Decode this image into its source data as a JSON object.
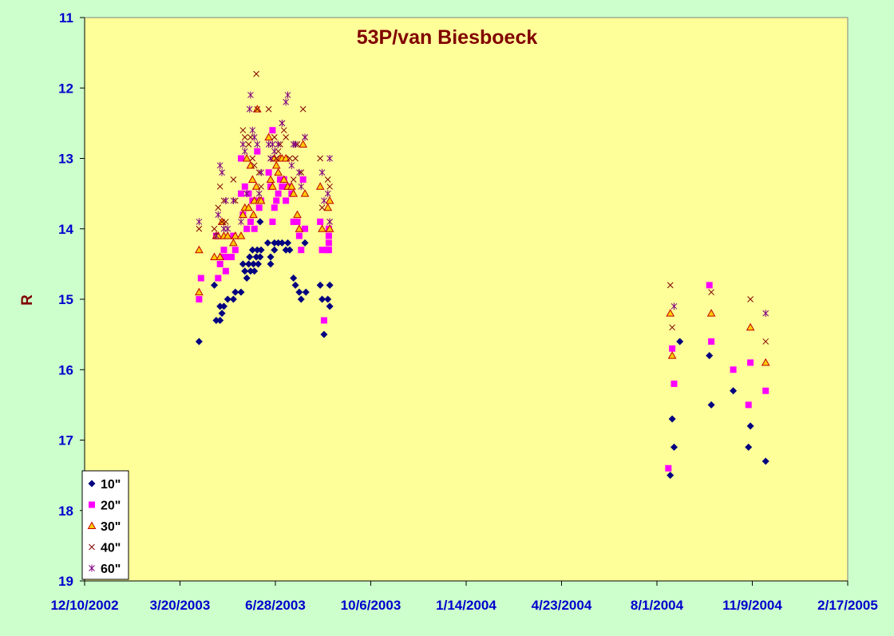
{
  "chart_data": {
    "type": "scatter",
    "title": "53P/van Biesboeck",
    "xlabel": "",
    "ylabel": "R",
    "y_inverted": true,
    "ylim": [
      11,
      19
    ],
    "y_ticks": [
      "11",
      "12",
      "13",
      "14",
      "15",
      "16",
      "17",
      "18",
      "19"
    ],
    "x_ticks": [
      "12/10/2002",
      "3/20/2003",
      "6/28/2003",
      "10/6/2003",
      "1/14/2004",
      "4/23/2004",
      "8/1/2004",
      "11/9/2004",
      "2/17/2005"
    ],
    "xlim": [
      "2002-12-10",
      "2005-02-17"
    ],
    "grid": false,
    "legend_position": "bottom-left",
    "plot_background": "#ffff99",
    "page_background": "#ccffcc",
    "series": [
      {
        "name": "10\"",
        "marker": "diamond",
        "color": "#000080",
        "points": [
          [
            "2003-04-09",
            15.6
          ],
          [
            "2003-04-25",
            14.8
          ],
          [
            "2003-04-27",
            15.3
          ],
          [
            "2003-05-01",
            15.3
          ],
          [
            "2003-05-01",
            15.1
          ],
          [
            "2003-05-03",
            15.2
          ],
          [
            "2003-05-05",
            15.1
          ],
          [
            "2003-05-09",
            15.0
          ],
          [
            "2003-05-15",
            15.0
          ],
          [
            "2003-05-17",
            14.9
          ],
          [
            "2003-05-23",
            14.9
          ],
          [
            "2003-05-25",
            14.5
          ],
          [
            "2003-05-27",
            14.6
          ],
          [
            "2003-05-29",
            14.7
          ],
          [
            "2003-05-31",
            14.5
          ],
          [
            "2003-06-01",
            14.4
          ],
          [
            "2003-06-02",
            14.6
          ],
          [
            "2003-06-04",
            14.3
          ],
          [
            "2003-06-05",
            14.5
          ],
          [
            "2003-06-06",
            14.6
          ],
          [
            "2003-06-08",
            14.4
          ],
          [
            "2003-06-09",
            14.3
          ],
          [
            "2003-06-10",
            14.5
          ],
          [
            "2003-06-12",
            14.4
          ],
          [
            "2003-06-13",
            14.3
          ],
          [
            "2003-06-12",
            13.9
          ],
          [
            "2003-06-20",
            14.2
          ],
          [
            "2003-06-23",
            14.5
          ],
          [
            "2003-06-23",
            14.4
          ],
          [
            "2003-06-27",
            14.3
          ],
          [
            "2003-06-27",
            14.2
          ],
          [
            "2003-07-01",
            14.2
          ],
          [
            "2003-07-05",
            14.2
          ],
          [
            "2003-07-09",
            14.3
          ],
          [
            "2003-07-11",
            14.2
          ],
          [
            "2003-07-13",
            14.3
          ],
          [
            "2003-07-17",
            14.7
          ],
          [
            "2003-07-19",
            14.8
          ],
          [
            "2003-07-23",
            14.9
          ],
          [
            "2003-07-25",
            15.0
          ],
          [
            "2003-07-29",
            14.2
          ],
          [
            "2003-07-30",
            14.9
          ],
          [
            "2003-08-14",
            14.8
          ],
          [
            "2003-08-16",
            15.0
          ],
          [
            "2003-08-18",
            15.5
          ],
          [
            "2003-08-22",
            15.0
          ],
          [
            "2003-08-24",
            15.1
          ],
          [
            "2003-08-24",
            14.8
          ],
          [
            "2004-08-15",
            17.5
          ],
          [
            "2004-08-17",
            16.7
          ],
          [
            "2004-08-19",
            17.1
          ],
          [
            "2004-08-25",
            15.6
          ],
          [
            "2004-09-25",
            15.8
          ],
          [
            "2004-09-27",
            16.5
          ],
          [
            "2004-10-20",
            16.3
          ],
          [
            "2004-11-05",
            17.1
          ],
          [
            "2004-11-07",
            16.8
          ],
          [
            "2004-11-23",
            17.3
          ]
        ]
      },
      {
        "name": "20\"",
        "marker": "square",
        "color": "#ff00ff",
        "points": [
          [
            "2003-04-09",
            15.0
          ],
          [
            "2003-04-11",
            14.7
          ],
          [
            "2003-04-27",
            14.1
          ],
          [
            "2003-04-29",
            14.7
          ],
          [
            "2003-05-01",
            14.5
          ],
          [
            "2003-05-03",
            14.4
          ],
          [
            "2003-05-05",
            14.3
          ],
          [
            "2003-05-07",
            14.6
          ],
          [
            "2003-05-09",
            14.4
          ],
          [
            "2003-05-13",
            14.4
          ],
          [
            "2003-05-15",
            14.1
          ],
          [
            "2003-05-17",
            14.3
          ],
          [
            "2003-05-23",
            13.5
          ],
          [
            "2003-05-25",
            13.8
          ],
          [
            "2003-05-27",
            13.4
          ],
          [
            "2003-05-29",
            14.0
          ],
          [
            "2003-05-31",
            13.5
          ],
          [
            "2003-06-02",
            13.9
          ],
          [
            "2003-06-04",
            13.6
          ],
          [
            "2003-06-06",
            14.0
          ],
          [
            "2003-06-08",
            13.6
          ],
          [
            "2003-06-09",
            12.9
          ],
          [
            "2003-06-11",
            13.7
          ],
          [
            "2003-06-13",
            13.6
          ],
          [
            "2003-05-23",
            13.0
          ],
          [
            "2003-06-21",
            13.2
          ],
          [
            "2003-06-23",
            13.4
          ],
          [
            "2003-06-25",
            12.6
          ],
          [
            "2003-06-25",
            13.9
          ],
          [
            "2003-06-27",
            13.7
          ],
          [
            "2003-06-29",
            13.6
          ],
          [
            "2003-07-01",
            13.5
          ],
          [
            "2003-07-03",
            13.3
          ],
          [
            "2003-07-05",
            13.4
          ],
          [
            "2003-07-07",
            13.3
          ],
          [
            "2003-07-09",
            13.6
          ],
          [
            "2003-07-11",
            13.4
          ],
          [
            "2003-07-15",
            13.5
          ],
          [
            "2003-07-17",
            13.9
          ],
          [
            "2003-07-21",
            13.9
          ],
          [
            "2003-07-23",
            14.1
          ],
          [
            "2003-07-25",
            14.3
          ],
          [
            "2003-07-27",
            13.3
          ],
          [
            "2003-07-29",
            14.0
          ],
          [
            "2003-08-14",
            13.9
          ],
          [
            "2003-08-16",
            14.3
          ],
          [
            "2003-08-18",
            15.3
          ],
          [
            "2003-08-21",
            14.3
          ],
          [
            "2003-08-23",
            14.2
          ],
          [
            "2003-08-23",
            14.1
          ],
          [
            "2003-08-23",
            14.0
          ],
          [
            "2003-08-23",
            14.3
          ],
          [
            "2004-08-13",
            17.4
          ],
          [
            "2004-08-17",
            15.7
          ],
          [
            "2004-08-19",
            16.2
          ],
          [
            "2004-09-25",
            14.8
          ],
          [
            "2004-09-27",
            15.6
          ],
          [
            "2004-10-20",
            16.0
          ],
          [
            "2004-11-05",
            16.5
          ],
          [
            "2004-11-07",
            15.9
          ],
          [
            "2004-11-23",
            16.3
          ]
        ]
      },
      {
        "name": "30\"",
        "marker": "triangle",
        "color": "#ffcc00",
        "stroke": "#c00000",
        "points": [
          [
            "2003-04-09",
            14.3
          ],
          [
            "2003-04-09",
            14.9
          ],
          [
            "2003-04-25",
            14.4
          ],
          [
            "2003-04-27",
            14.1
          ],
          [
            "2003-04-29",
            14.1
          ],
          [
            "2003-05-01",
            14.4
          ],
          [
            "2003-05-03",
            13.9
          ],
          [
            "2003-05-05",
            14.1
          ],
          [
            "2003-05-09",
            14.1
          ],
          [
            "2003-05-15",
            14.2
          ],
          [
            "2003-05-17",
            14.1
          ],
          [
            "2003-05-23",
            14.1
          ],
          [
            "2003-05-25",
            13.8
          ],
          [
            "2003-05-27",
            13.7
          ],
          [
            "2003-05-29",
            13.0
          ],
          [
            "2003-05-31",
            13.7
          ],
          [
            "2003-06-02",
            13.1
          ],
          [
            "2003-06-04",
            13.3
          ],
          [
            "2003-06-05",
            13.8
          ],
          [
            "2003-06-06",
            13.6
          ],
          [
            "2003-06-08",
            13.4
          ],
          [
            "2003-06-09",
            12.3
          ],
          [
            "2003-06-11",
            13.6
          ],
          [
            "2003-06-13",
            13.6
          ],
          [
            "2003-06-21",
            12.7
          ],
          [
            "2003-06-23",
            13.3
          ],
          [
            "2003-06-25",
            13.4
          ],
          [
            "2003-06-27",
            13.0
          ],
          [
            "2003-06-29",
            13.1
          ],
          [
            "2003-07-01",
            13.2
          ],
          [
            "2003-07-03",
            13.0
          ],
          [
            "2003-07-05",
            13.0
          ],
          [
            "2003-07-07",
            13.3
          ],
          [
            "2003-07-09",
            13.0
          ],
          [
            "2003-07-11",
            13.4
          ],
          [
            "2003-07-15",
            13.4
          ],
          [
            "2003-07-17",
            13.5
          ],
          [
            "2003-07-21",
            13.8
          ],
          [
            "2003-07-23",
            14.0
          ],
          [
            "2003-07-27",
            12.8
          ],
          [
            "2003-07-29",
            13.5
          ],
          [
            "2003-08-14",
            13.4
          ],
          [
            "2003-08-16",
            14.0
          ],
          [
            "2003-08-22",
            13.7
          ],
          [
            "2003-08-24",
            13.6
          ],
          [
            "2003-08-24",
            14.0
          ],
          [
            "2004-08-15",
            15.2
          ],
          [
            "2004-08-17",
            15.8
          ],
          [
            "2004-09-27",
            15.2
          ],
          [
            "2004-11-07",
            15.4
          ],
          [
            "2004-11-23",
            15.9
          ]
        ]
      },
      {
        "name": "40\"",
        "marker": "x",
        "color": "#800000",
        "points": [
          [
            "2003-04-09",
            14.0
          ],
          [
            "2003-04-25",
            14.0
          ],
          [
            "2003-04-29",
            13.7
          ],
          [
            "2003-05-01",
            13.4
          ],
          [
            "2003-05-03",
            13.9
          ],
          [
            "2003-05-05",
            13.6
          ],
          [
            "2003-05-07",
            13.9
          ],
          [
            "2003-05-15",
            13.3
          ],
          [
            "2003-05-17",
            13.6
          ],
          [
            "2003-05-25",
            12.6
          ],
          [
            "2003-05-27",
            12.7
          ],
          [
            "2003-05-31",
            12.8
          ],
          [
            "2003-06-02",
            12.7
          ],
          [
            "2003-06-04",
            13.0
          ],
          [
            "2003-06-06",
            13.1
          ],
          [
            "2003-06-08",
            11.8
          ],
          [
            "2003-06-09",
            12.3
          ],
          [
            "2003-06-11",
            13.2
          ],
          [
            "2003-06-13",
            13.4
          ],
          [
            "2003-06-21",
            12.3
          ],
          [
            "2003-06-23",
            13.0
          ],
          [
            "2003-06-27",
            12.7
          ],
          [
            "2003-06-29",
            13.0
          ],
          [
            "2003-07-01",
            12.9
          ],
          [
            "2003-07-03",
            12.8
          ],
          [
            "2003-07-05",
            12.5
          ],
          [
            "2003-07-07",
            12.6
          ],
          [
            "2003-07-09",
            12.7
          ],
          [
            "2003-07-13",
            13.0
          ],
          [
            "2003-07-17",
            13.3
          ],
          [
            "2003-07-19",
            13.0
          ],
          [
            "2003-07-21",
            12.8
          ],
          [
            "2003-07-25",
            13.2
          ],
          [
            "2003-07-27",
            12.3
          ],
          [
            "2003-07-29",
            12.7
          ],
          [
            "2003-08-14",
            13.0
          ],
          [
            "2003-08-16",
            13.7
          ],
          [
            "2003-08-22",
            13.3
          ],
          [
            "2003-08-24",
            13.4
          ],
          [
            "2003-08-24",
            13.9
          ],
          [
            "2004-08-15",
            14.8
          ],
          [
            "2004-08-17",
            15.4
          ],
          [
            "2004-09-27",
            14.9
          ],
          [
            "2004-11-07",
            15.0
          ],
          [
            "2004-11-23",
            15.6
          ]
        ]
      },
      {
        "name": "60\"",
        "marker": "star",
        "color": "#800080",
        "points": [
          [
            "2003-04-09",
            13.9
          ],
          [
            "2003-04-27",
            14.1
          ],
          [
            "2003-04-29",
            13.8
          ],
          [
            "2003-05-01",
            13.1
          ],
          [
            "2003-05-03",
            13.2
          ],
          [
            "2003-05-05",
            14.0
          ],
          [
            "2003-05-07",
            13.6
          ],
          [
            "2003-05-09",
            14.0
          ],
          [
            "2003-05-15",
            13.6
          ],
          [
            "2003-05-23",
            13.9
          ],
          [
            "2003-05-25",
            12.8
          ],
          [
            "2003-05-27",
            12.9
          ],
          [
            "2003-05-29",
            13.5
          ],
          [
            "2003-06-01",
            12.3
          ],
          [
            "2003-06-02",
            12.1
          ],
          [
            "2003-06-04",
            12.6
          ],
          [
            "2003-06-06",
            12.7
          ],
          [
            "2003-06-09",
            12.8
          ],
          [
            "2003-06-11",
            13.5
          ],
          [
            "2003-06-13",
            13.2
          ],
          [
            "2003-06-21",
            12.8
          ],
          [
            "2003-06-23",
            13.0
          ],
          [
            "2003-06-25",
            12.8
          ],
          [
            "2003-06-27",
            12.9
          ],
          [
            "2003-07-01",
            12.8
          ],
          [
            "2003-07-05",
            12.5
          ],
          [
            "2003-07-09",
            12.2
          ],
          [
            "2003-07-11",
            12.1
          ],
          [
            "2003-07-15",
            13.1
          ],
          [
            "2003-07-17",
            12.8
          ],
          [
            "2003-07-19",
            12.8
          ],
          [
            "2003-07-23",
            13.2
          ],
          [
            "2003-07-25",
            13.4
          ],
          [
            "2003-07-29",
            12.7
          ],
          [
            "2003-08-16",
            13.2
          ],
          [
            "2003-08-18",
            13.6
          ],
          [
            "2003-08-22",
            13.5
          ],
          [
            "2003-08-24",
            13.0
          ],
          [
            "2003-08-24",
            13.9
          ],
          [
            "2004-08-19",
            15.1
          ],
          [
            "2004-11-23",
            15.2
          ]
        ]
      }
    ]
  }
}
